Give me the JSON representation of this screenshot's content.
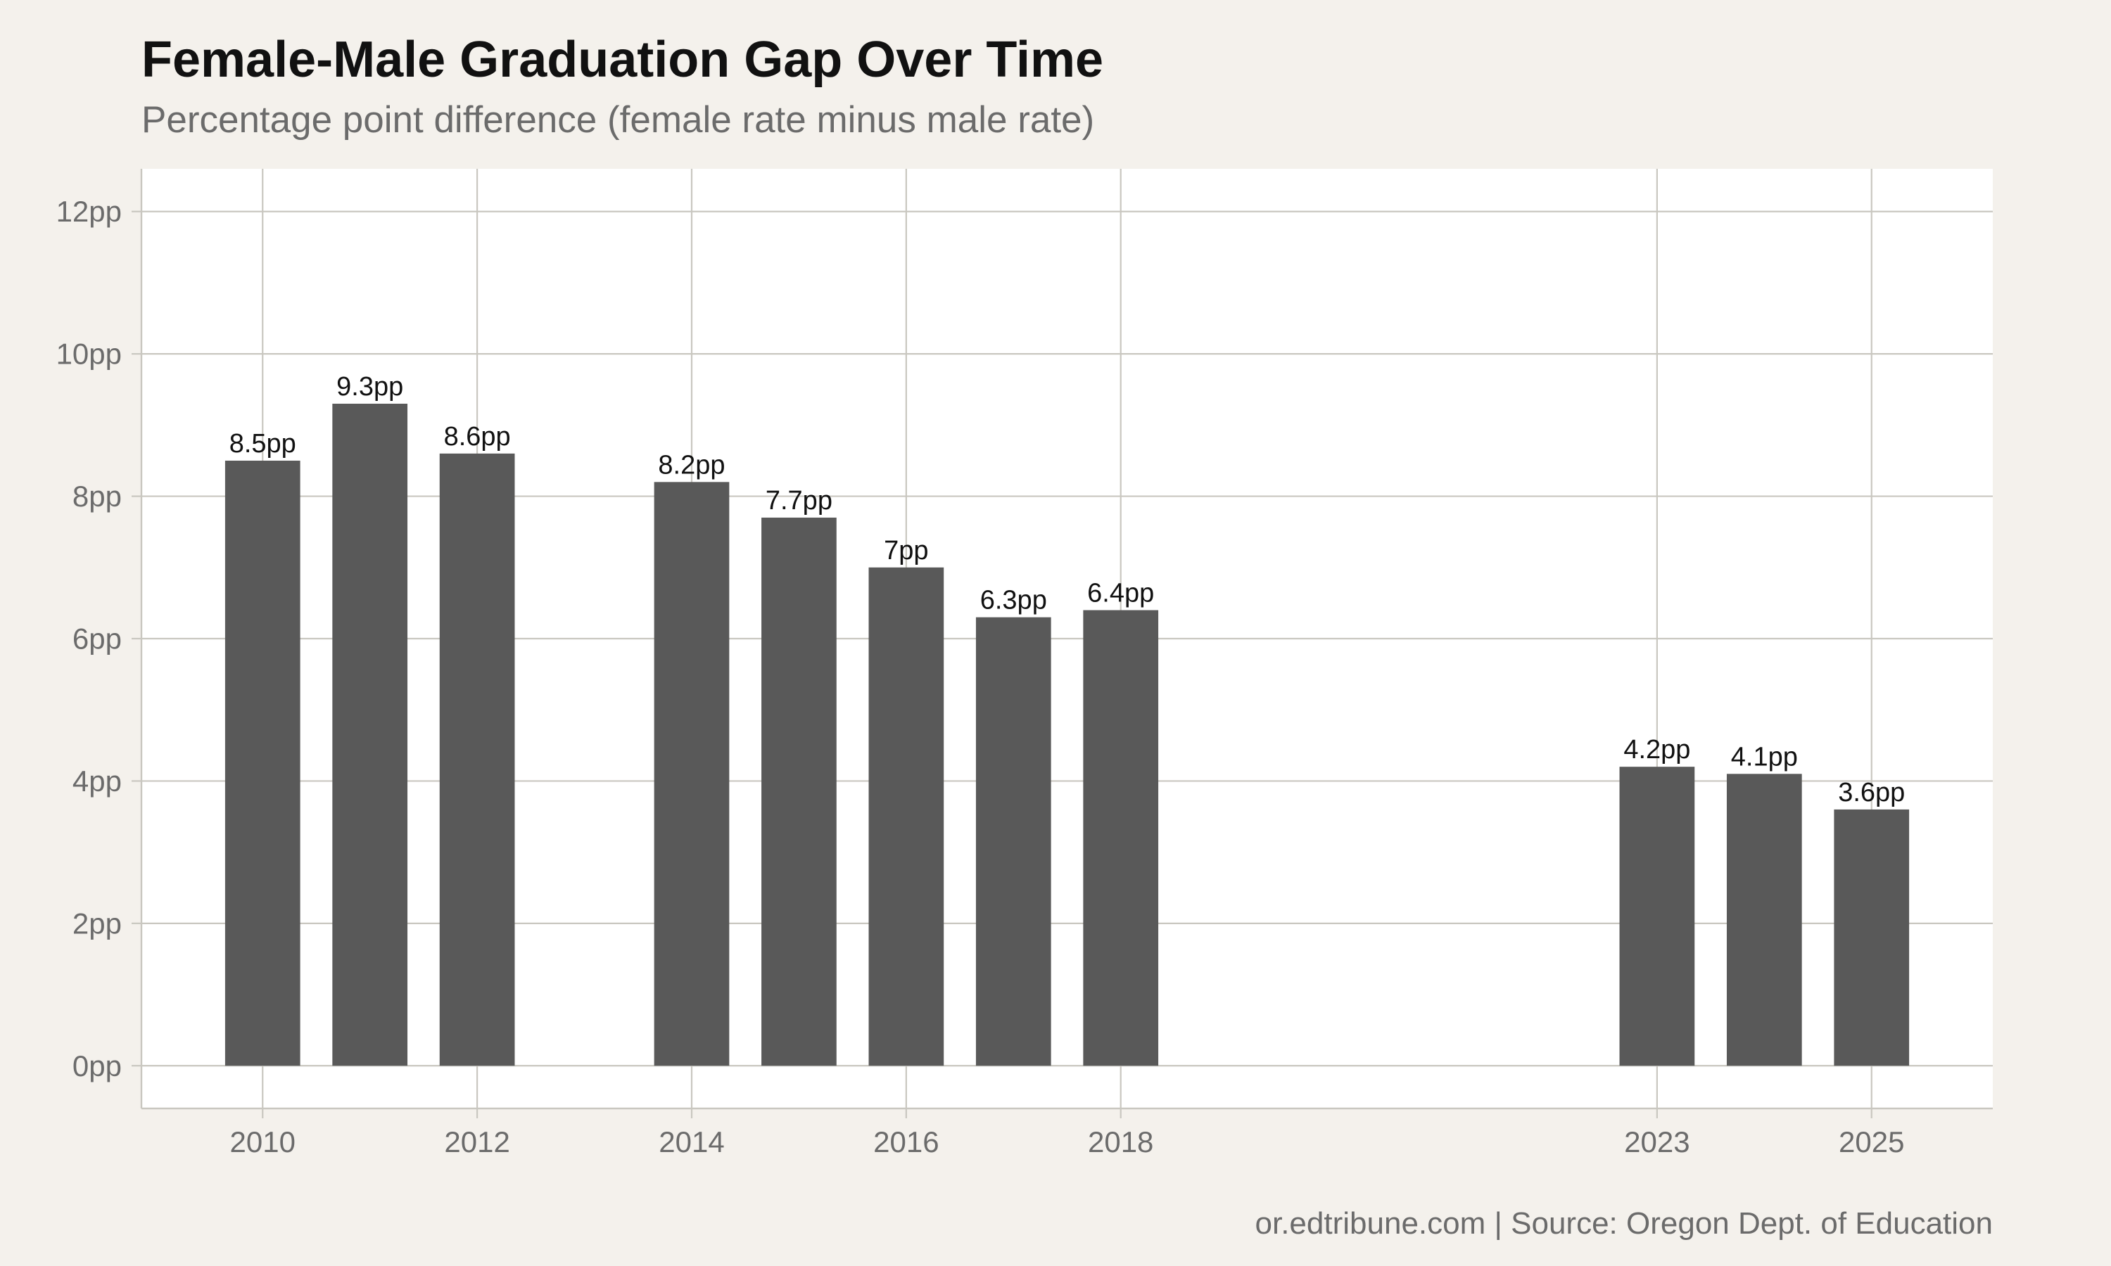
{
  "chart_data": {
    "type": "bar",
    "title": "Female-Male Graduation Gap Over Time",
    "subtitle": "Percentage point difference (female rate minus male rate)",
    "caption": "or.edtribune.com | Source: Oregon Dept. of Education",
    "xlabel": "",
    "ylabel": "",
    "x": [
      2010,
      2011,
      2012,
      2014,
      2015,
      2016,
      2017,
      2018,
      2023,
      2024,
      2025
    ],
    "values": [
      8.5,
      9.3,
      8.6,
      8.2,
      7.7,
      7.0,
      6.3,
      6.4,
      4.2,
      4.1,
      3.6
    ],
    "data_labels": [
      "8.5pp",
      "9.3pp",
      "8.6pp",
      "8.2pp",
      "7.7pp",
      "7pp",
      "6.3pp",
      "6.4pp",
      "4.2pp",
      "4.1pp",
      "3.6pp"
    ],
    "x_ticks": [
      2010,
      2012,
      2014,
      2016,
      2018,
      2023,
      2025
    ],
    "x_tick_labels": [
      "2010",
      "2012",
      "2014",
      "2016",
      "2018",
      "2023",
      "2025"
    ],
    "y_ticks": [
      0,
      2,
      4,
      6,
      8,
      10,
      12
    ],
    "y_tick_labels": [
      "0pp",
      "2pp",
      "4pp",
      "6pp",
      "8pp",
      "10pp",
      "12pp"
    ],
    "xlim": [
      2008.87,
      2026.13
    ],
    "ylim": [
      -0.6,
      12.6
    ],
    "grid": true,
    "legend": "none",
    "colors": {
      "bar": "#595959",
      "panel": "#ffffff",
      "background": "#f4f1ec",
      "grid": "#c9c7c0"
    }
  }
}
